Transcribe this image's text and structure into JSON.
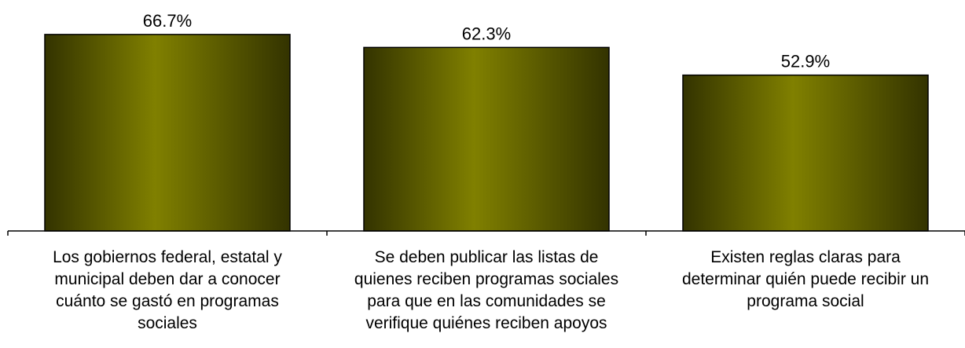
{
  "chart_data": {
    "type": "bar",
    "categories": [
      "Los gobiernos federal, estatal y\nmunicipal deben dar a conocer\ncuánto se gastó en programas\nsociales",
      "Se deben publicar las listas de\nquienes reciben programas sociales\npara que en las comunidades se\nverifique quiénes reciben apoyos",
      "Existen reglas claras para\ndeterminar quién puede recibir un\nprograma social"
    ],
    "values": [
      66.7,
      62.3,
      52.9
    ],
    "data_labels": [
      "66.7%",
      "62.3%",
      "52.9%"
    ],
    "ylim": [
      0,
      70
    ],
    "grid": false,
    "legend": "none",
    "colors": {
      "bar_center": "#808000",
      "bar_edge": "#333300",
      "axis": "#000000"
    }
  }
}
